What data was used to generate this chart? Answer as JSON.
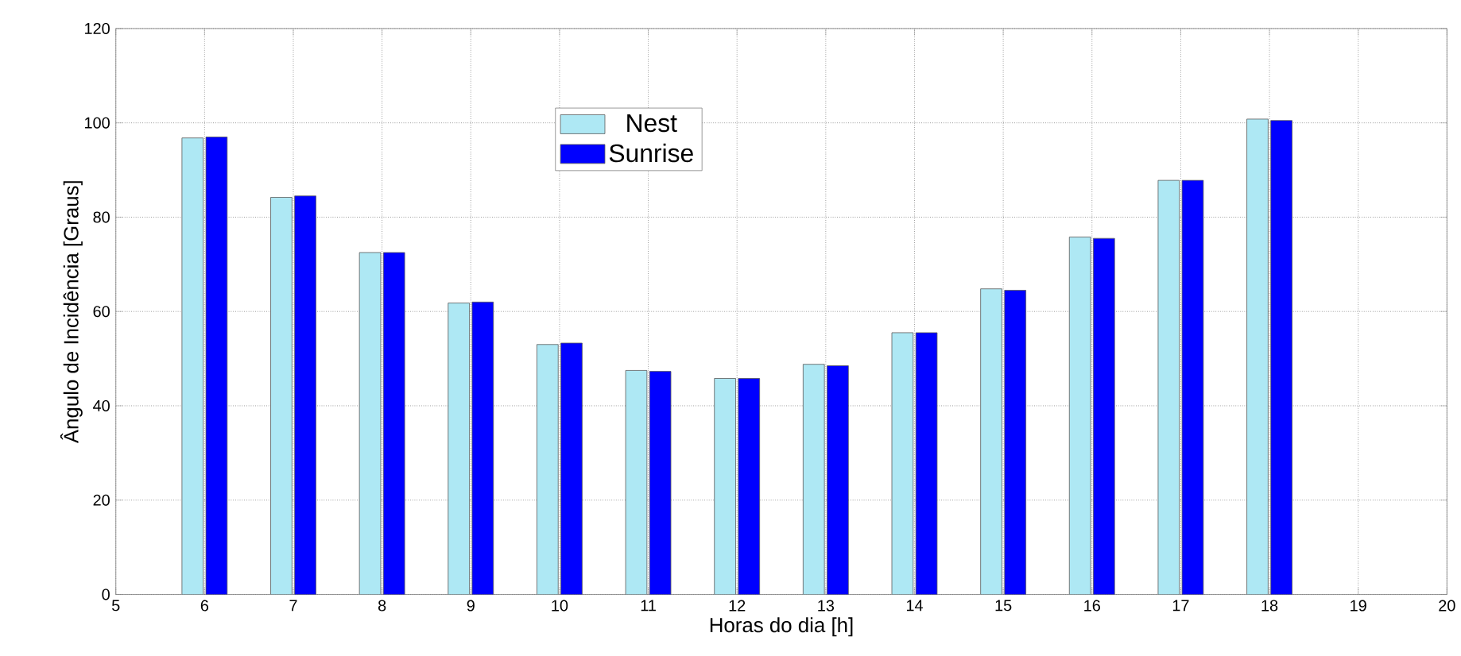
{
  "chart_data": {
    "type": "bar",
    "xlabel": "Horas do dia [h]",
    "ylabel": "Ângulo de Incidência  [Graus]",
    "x": [
      6,
      7,
      8,
      9,
      10,
      11,
      12,
      13,
      14,
      15,
      16,
      17,
      18
    ],
    "series": [
      {
        "name": "Nest",
        "color": "#aee8f4",
        "values": [
          96.8,
          84.2,
          72.5,
          61.8,
          53,
          47.5,
          45.8,
          48.8,
          55.5,
          64.8,
          75.8,
          87.8,
          100.8
        ]
      },
      {
        "name": "Sunrise",
        "color": "#0000ff",
        "values": [
          97,
          84.5,
          72.5,
          62,
          53.3,
          47.3,
          45.8,
          48.5,
          55.5,
          64.5,
          75.5,
          87.8,
          100.5
        ]
      }
    ],
    "xlim": [
      5,
      20
    ],
    "xticks": [
      5,
      6,
      7,
      8,
      9,
      10,
      11,
      12,
      13,
      14,
      15,
      16,
      17,
      18,
      19,
      20
    ],
    "ylim": [
      0,
      120
    ],
    "yticks": [
      0,
      20,
      40,
      60,
      80,
      100,
      120
    ],
    "grid": true,
    "legend": "top"
  }
}
